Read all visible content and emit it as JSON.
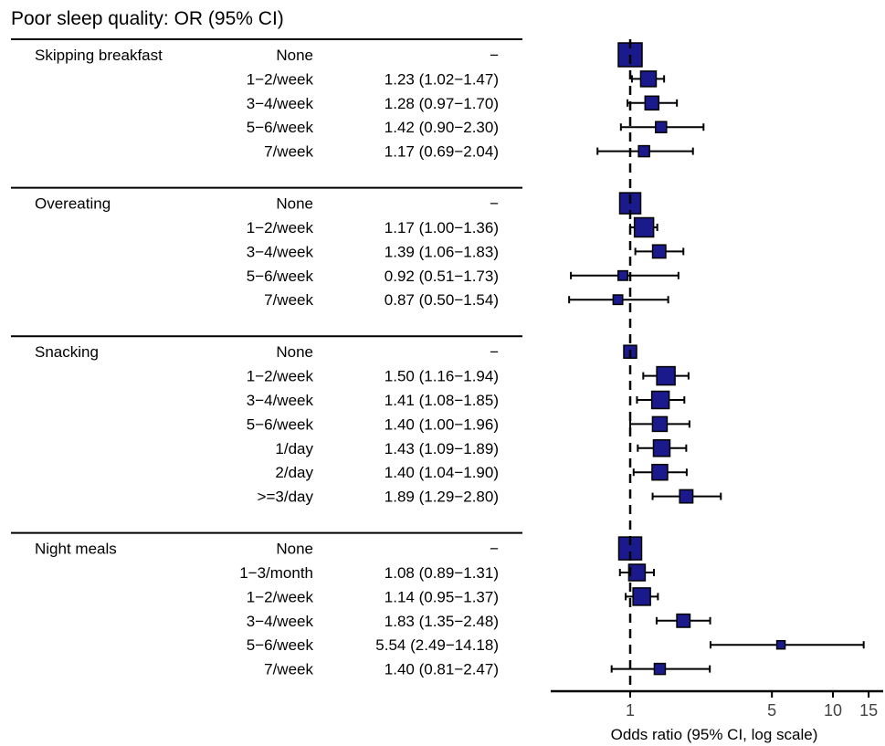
{
  "chart_data": {
    "type": "forest",
    "title": "Poor sleep quality: OR (95% CI)",
    "xlabel": "Odds ratio (95% CI, log scale)",
    "x_scale": "log",
    "reference_line": 1,
    "xlim": [
      0.55,
      15
    ],
    "x_ticks": [
      1,
      5,
      10,
      15
    ],
    "marker_color": "#1a1a8c",
    "groups": [
      {
        "label": "Skipping breakfast",
        "rows": [
          {
            "level": "None",
            "or_text": "−",
            "or": 1,
            "lo": null,
            "hi": null,
            "weight": 1.0
          },
          {
            "level": "1−2/week",
            "or_text": "1.23 (1.02−1.47)",
            "or": 1.23,
            "lo": 1.02,
            "hi": 1.47,
            "weight": 0.55
          },
          {
            "level": "3−4/week",
            "or_text": "1.28 (0.97−1.70)",
            "or": 1.28,
            "lo": 0.97,
            "hi": 1.7,
            "weight": 0.45
          },
          {
            "level": "5−6/week",
            "or_text": "1.42 (0.90−2.30)",
            "or": 1.42,
            "lo": 0.9,
            "hi": 2.3,
            "weight": 0.3
          },
          {
            "level": "7/week",
            "or_text": "1.17 (0.69−2.04)",
            "or": 1.17,
            "lo": 0.69,
            "hi": 2.04,
            "weight": 0.3
          }
        ]
      },
      {
        "label": "Overeating",
        "rows": [
          {
            "level": "None",
            "or_text": "−",
            "or": 1,
            "lo": null,
            "hi": null,
            "weight": 0.85
          },
          {
            "level": "1−2/week",
            "or_text": "1.17 (1.00−1.36)",
            "or": 1.17,
            "lo": 1.0,
            "hi": 1.36,
            "weight": 0.75
          },
          {
            "level": "3−4/week",
            "or_text": "1.39 (1.06−1.83)",
            "or": 1.39,
            "lo": 1.06,
            "hi": 1.83,
            "weight": 0.42
          },
          {
            "level": "5−6/week",
            "or_text": "0.92 (0.51−1.73)",
            "or": 0.92,
            "lo": 0.51,
            "hi": 1.73,
            "weight": 0.22
          },
          {
            "level": "7/week",
            "or_text": "0.87 (0.50−1.54)",
            "or": 0.87,
            "lo": 0.5,
            "hi": 1.54,
            "weight": 0.22
          }
        ]
      },
      {
        "label": "Snacking",
        "rows": [
          {
            "level": "None",
            "or_text": "−",
            "or": 1,
            "lo": null,
            "hi": null,
            "weight": 0.4
          },
          {
            "level": "1−2/week",
            "or_text": "1.50 (1.16−1.94)",
            "or": 1.5,
            "lo": 1.16,
            "hi": 1.94,
            "weight": 0.7
          },
          {
            "level": "3−4/week",
            "or_text": "1.41 (1.08−1.85)",
            "or": 1.41,
            "lo": 1.08,
            "hi": 1.85,
            "weight": 0.65
          },
          {
            "level": "5−6/week",
            "or_text": "1.40 (1.00−1.96)",
            "or": 1.4,
            "lo": 1.0,
            "hi": 1.96,
            "weight": 0.5
          },
          {
            "level": "1/day",
            "or_text": "1.43 (1.09−1.89)",
            "or": 1.43,
            "lo": 1.09,
            "hi": 1.89,
            "weight": 0.6
          },
          {
            "level": "2/day",
            "or_text": "1.40 (1.04−1.90)",
            "or": 1.4,
            "lo": 1.04,
            "hi": 1.9,
            "weight": 0.55
          },
          {
            "level": ">=3/day",
            "or_text": "1.89 (1.29−2.80)",
            "or": 1.89,
            "lo": 1.29,
            "hi": 2.8,
            "weight": 0.42
          }
        ]
      },
      {
        "label": "Night meals",
        "rows": [
          {
            "level": "None",
            "or_text": "−",
            "or": 1,
            "lo": null,
            "hi": null,
            "weight": 0.95
          },
          {
            "level": "1−3/month",
            "or_text": "1.08 (0.89−1.31)",
            "or": 1.08,
            "lo": 0.89,
            "hi": 1.31,
            "weight": 0.6
          },
          {
            "level": "1−2/week",
            "or_text": "1.14 (0.95−1.37)",
            "or": 1.14,
            "lo": 0.95,
            "hi": 1.37,
            "weight": 0.65
          },
          {
            "level": "3−4/week",
            "or_text": "1.83 (1.35−2.48)",
            "or": 1.83,
            "lo": 1.35,
            "hi": 2.48,
            "weight": 0.42
          },
          {
            "level": "5−6/week",
            "or_text": "5.54 (2.49−14.18)",
            "or": 5.54,
            "lo": 2.49,
            "hi": 14.18,
            "weight": 0.15
          },
          {
            "level": "7/week",
            "or_text": "1.40 (0.81−2.47)",
            "or": 1.4,
            "lo": 0.81,
            "hi": 2.47,
            "weight": 0.3
          }
        ]
      }
    ]
  }
}
